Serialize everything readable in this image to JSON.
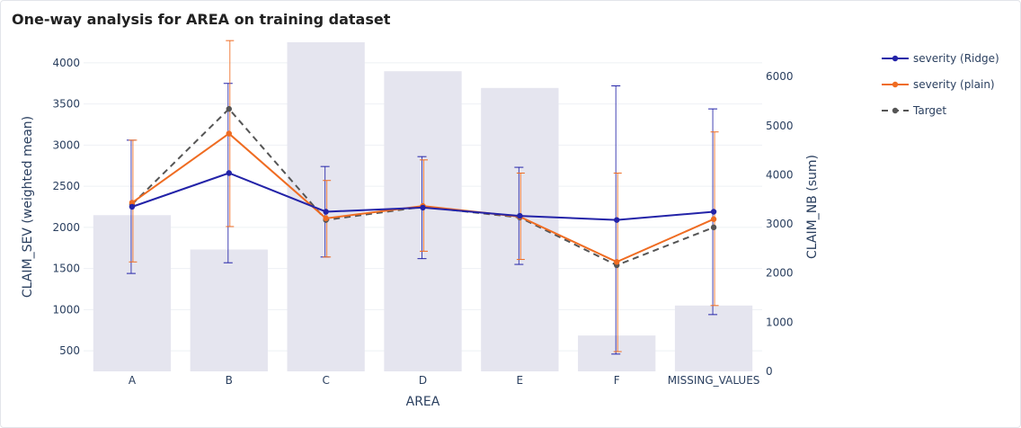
{
  "page": {
    "title": "One-way analysis for AREA on training dataset"
  },
  "chart_data": {
    "type": "bar+line",
    "title": "One-way analysis for AREA on training dataset",
    "categories": [
      "A",
      "B",
      "C",
      "D",
      "E",
      "F",
      "MISSING_VALUES"
    ],
    "xlabel": "AREA",
    "ylabel_left": "CLAIM_SEV (weighted mean)",
    "ylabel_right": "CLAIM_NB (sum)",
    "ylim_left": [
      250,
      4250
    ],
    "ylim_right": [
      0,
      6700
    ],
    "yticks_left": [
      500,
      1000,
      1500,
      2000,
      2500,
      3000,
      3500,
      4000
    ],
    "yticks_right": [
      0,
      1000,
      2000,
      3000,
      4000,
      5000,
      6000
    ],
    "bars": {
      "name": "CLAIM_NB (sum)",
      "axis": "right",
      "color": "#e5e5ef",
      "values": [
        3180,
        2480,
        6700,
        6110,
        5770,
        730,
        1340
      ]
    },
    "series": [
      {
        "name": "severity (Ridge)",
        "axis": "left",
        "color": "#2323a8",
        "dash": "solid",
        "values": [
          2250,
          2660,
          2190,
          2240,
          2140,
          2090,
          2190
        ],
        "error_low": [
          1440,
          1570,
          1640,
          1620,
          1550,
          460,
          940
        ],
        "error_high": [
          3060,
          3750,
          2740,
          2860,
          2730,
          3720,
          3440
        ]
      },
      {
        "name": "severity (plain)",
        "axis": "left",
        "color": "#ef6c22",
        "dash": "solid",
        "values": [
          2300,
          3140,
          2110,
          2260,
          2130,
          1580,
          2100
        ],
        "error_low": [
          1580,
          2010,
          1640,
          1710,
          1610,
          490,
          1050
        ],
        "error_high": [
          3060,
          4270,
          2570,
          2820,
          2660,
          2660,
          3160
        ]
      },
      {
        "name": "Target",
        "axis": "left",
        "color": "#555555",
        "dash": "dashed",
        "values": [
          2280,
          3440,
          2090,
          2250,
          2120,
          1540,
          2000
        ]
      }
    ],
    "legend_position": "top-right",
    "grid": true
  }
}
